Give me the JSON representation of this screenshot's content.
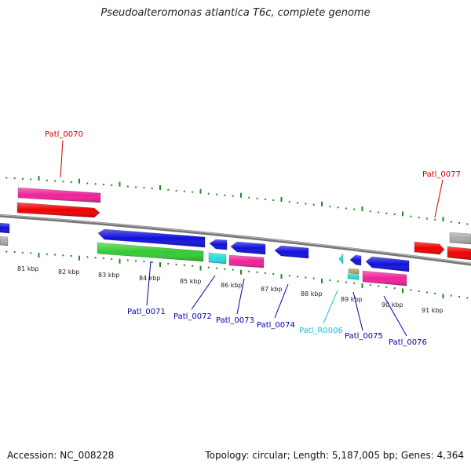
{
  "title": "Pseudoalteromonas atlantica T6c, complete genome",
  "footer": {
    "accession": "Accession: NC_008228",
    "summary": "Topology: circular; Length: 5,187,005 bp; Genes: 4,364"
  },
  "colors": {
    "red": "#ee0000",
    "pink": "#ee2299",
    "blue": "#1010dd",
    "green": "#33cc33",
    "cyan": "#22dddd",
    "gray": "#aaaaaa",
    "tan": "#bba066",
    "tick_green": "#228822",
    "label_red": "#cc0000",
    "label_blue": "#0000aa",
    "label_cyan": "#22bbdd"
  },
  "scale_labels": [
    "81 kbp",
    "82 kbp",
    "83 kbp",
    "84 kbp",
    "85 kbp",
    "86 kbp",
    "87 kbp",
    "88 kbp",
    "89 kbp",
    "90 kbp",
    "91 kbp"
  ],
  "gene_labels": [
    {
      "text": "Patl_0070",
      "color": "label_red"
    },
    {
      "text": "Patl_0077",
      "color": "label_red"
    },
    {
      "text": "Patl_0071",
      "color": "label_blue"
    },
    {
      "text": "Patl_0072",
      "color": "label_blue"
    },
    {
      "text": "Patl_0073",
      "color": "label_blue"
    },
    {
      "text": "Patl_0074",
      "color": "label_blue"
    },
    {
      "text": "Patl_R0006",
      "color": "label_cyan"
    },
    {
      "text": "Patl_0075",
      "color": "label_blue"
    },
    {
      "text": "Patl_0076",
      "color": "label_blue"
    }
  ]
}
